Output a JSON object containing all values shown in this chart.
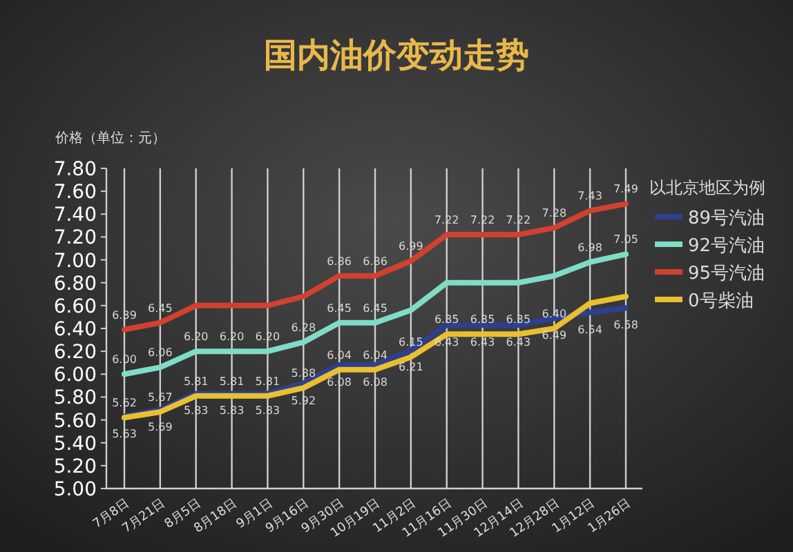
{
  "chart_data": {
    "type": "line",
    "title": "国内油价变动走势",
    "ylabel": "价格（单位：元）",
    "legend_title": "以北京地区为例",
    "legend": "right",
    "grid": "x",
    "marker": "none",
    "line_style": "solid",
    "categories": [
      "7月8日",
      "7月21日",
      "8月5日",
      "8月18日",
      "9月1日",
      "9月16日",
      "9月30日",
      "10月19日",
      "11月2日",
      "11月16日",
      "11月30日",
      "12月14日",
      "12月28日",
      "1月12日",
      "1月26日"
    ],
    "ylim": [
      5.0,
      7.8
    ],
    "yticks": [
      {
        "value": 5.0,
        "label": "5.00"
      },
      {
        "value": 5.2,
        "label": "5.20"
      },
      {
        "value": 5.4,
        "label": "5.40"
      },
      {
        "value": 5.6,
        "label": "5.60"
      },
      {
        "value": 5.8,
        "label": "5.80"
      },
      {
        "value": 6.0,
        "label": "6.00"
      },
      {
        "value": 6.2,
        "label": "6.20"
      },
      {
        "value": 6.4,
        "label": "6.40"
      },
      {
        "value": 6.6,
        "label": "6.60"
      },
      {
        "value": 6.8,
        "label": "6.80"
      },
      {
        "value": 7.0,
        "label": "7.00"
      },
      {
        "value": 7.2,
        "label": "7.20"
      },
      {
        "value": 7.4,
        "label": "7.40"
      },
      {
        "value": 7.6,
        "label": "7.60"
      },
      {
        "value": 7.8,
        "label": "7.80"
      }
    ],
    "series": [
      {
        "name": "89号汽油",
        "color": "#2e3f8f",
        "values": [
          5.63,
          5.69,
          5.83,
          5.83,
          5.83,
          5.92,
          6.08,
          6.08,
          6.21,
          6.43,
          6.43,
          6.43,
          6.49,
          6.54,
          6.58
        ],
        "value_labels": [
          "5.63",
          "5.69",
          "5.83",
          "5.83",
          "5.83",
          "5.92",
          "6.08",
          "6.08",
          "6.21",
          "6.43",
          "6.43",
          "6.43",
          "6.49",
          "6.54",
          "6.58"
        ]
      },
      {
        "name": "92号汽油",
        "color": "#7fdcc6",
        "values": [
          6.0,
          6.06,
          6.2,
          6.2,
          6.2,
          6.28,
          6.45,
          6.45,
          6.56,
          6.8,
          6.8,
          6.8,
          6.86,
          6.98,
          7.05
        ],
        "value_labels": [
          "6.00",
          "6.06",
          "6.20",
          "6.20",
          "6.20",
          "6.28",
          "6.45",
          "6.45",
          null,
          null,
          null,
          null,
          null,
          "6.98",
          "7.05"
        ]
      },
      {
        "name": "95号汽油",
        "color": "#d0412f",
        "values": [
          6.39,
          6.45,
          6.6,
          6.6,
          6.6,
          6.68,
          6.86,
          6.86,
          6.99,
          7.22,
          7.22,
          7.22,
          7.28,
          7.43,
          7.49
        ],
        "value_labels": [
          "6.39",
          "6.45",
          null,
          null,
          null,
          null,
          "6.86",
          "6.86",
          "6.99",
          "7.22",
          "7.22",
          "7.22",
          "7.28",
          "7.43",
          "7.49"
        ]
      },
      {
        "name": "0号柴油",
        "color": "#e8c030",
        "values": [
          5.62,
          5.67,
          5.81,
          5.81,
          5.81,
          5.88,
          6.04,
          6.04,
          6.15,
          6.35,
          6.35,
          6.35,
          6.4,
          6.62,
          6.68
        ],
        "value_labels": [
          "5.62",
          "5.67",
          "5.81",
          "5.81",
          "5.81",
          "5.88",
          "6.04",
          "6.04",
          "6.15",
          "6.35",
          "6.35",
          "6.35",
          "6.40",
          null,
          null
        ]
      }
    ]
  }
}
